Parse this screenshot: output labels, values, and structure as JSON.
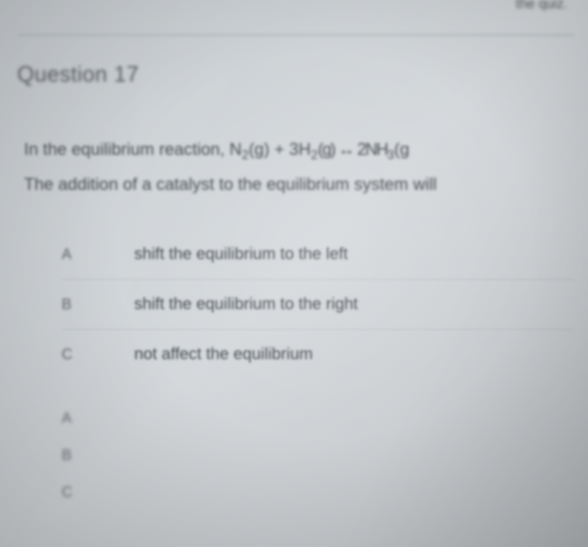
{
  "top_fragment": "the quiz.",
  "question": {
    "label": "Question 17",
    "stem_line1_prefix": "In the equilibrium reaction, N",
    "stem_line1_n2sub": "2",
    "stem_line1_mid1": "(g) + 3H",
    "stem_line1_h2sub": "2",
    "stem_line1_mid2": "(g) ↔ 2NH",
    "stem_line1_nh3sub": "3",
    "stem_line1_suffix": "(g",
    "stem_line2": "The addition of a catalyst to the equilibrium system will"
  },
  "options": [
    {
      "letter": "A",
      "text": "shift the equilibrium to the left"
    },
    {
      "letter": "B",
      "text": "shift the equilibrium to the right"
    },
    {
      "letter": "C",
      "text": "not affect the equilibrium"
    }
  ],
  "secondary_letters": [
    "A",
    "B",
    "C"
  ],
  "style": {
    "bg_gradient_start": "#c8cdd1",
    "bg_gradient_end": "#c0c4c7",
    "text_color": "#3a3f44",
    "header_fontsize": 32,
    "stem_fontsize": 25,
    "option_fontsize": 24,
    "letter_fontsize": 22,
    "divider_color": "rgba(130,135,140,0.25)",
    "blur_heavy": 2.5,
    "blur_light": 1.2
  }
}
